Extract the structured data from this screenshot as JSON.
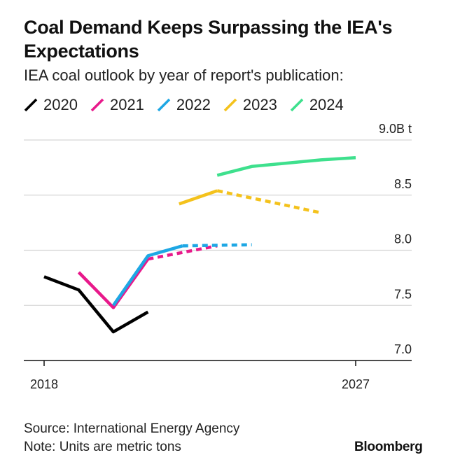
{
  "title": "Coal Demand Keeps Surpassing the IEA's Expectations",
  "subtitle": "IEA coal outlook by year of report's publication:",
  "source": "Source: International Energy Agency",
  "note": "Note: Units are metric tons",
  "brand": "Bloomberg",
  "chart_data": {
    "type": "line",
    "title": "Coal Demand Keeps Surpassing the IEA's Expectations",
    "subtitle": "IEA coal outlook by year of report's publication:",
    "xlabel": "",
    "ylabel": "",
    "xlim": [
      2018,
      2028.2
    ],
    "ylim": [
      7.0,
      9.0
    ],
    "x_ticks": [
      2018,
      2027
    ],
    "x_tick_labels": [
      "2018",
      "2027"
    ],
    "y_ticks": [
      9.0,
      8.5,
      8.0,
      7.5,
      7.0
    ],
    "y_tick_labels": [
      "9.0B t",
      "8.5",
      "8.0",
      "7.5",
      "7.0"
    ],
    "grid": true,
    "legend_position": "top-left",
    "series": [
      {
        "name": "2020",
        "color": "#000000",
        "points": [
          [
            2018,
            7.76
          ],
          [
            2019,
            7.64
          ],
          [
            2020,
            7.26
          ],
          [
            2021,
            7.44
          ]
        ],
        "projection": []
      },
      {
        "name": "2021",
        "color": "#e8198b",
        "points": [
          [
            2019,
            7.8
          ],
          [
            2020,
            7.48
          ],
          [
            2021,
            7.92
          ]
        ],
        "projection": [
          [
            2021,
            7.92
          ],
          [
            2022,
            7.98
          ],
          [
            2023,
            8.04
          ]
        ]
      },
      {
        "name": "2022",
        "color": "#1ea7e4",
        "points": [
          [
            2020,
            7.5
          ],
          [
            2021,
            7.95
          ],
          [
            2022,
            8.04
          ]
        ],
        "projection": [
          [
            2022,
            8.04
          ],
          [
            2024,
            8.05
          ]
        ]
      },
      {
        "name": "2023",
        "color": "#f4c21c",
        "points": [
          [
            2021.9,
            8.42
          ],
          [
            2023,
            8.54
          ]
        ],
        "projection": [
          [
            2023,
            8.54
          ],
          [
            2026,
            8.34
          ]
        ]
      },
      {
        "name": "2024",
        "color": "#3ee08d",
        "points": [
          [
            2023,
            8.68
          ],
          [
            2024,
            8.76
          ],
          [
            2026,
            8.82
          ],
          [
            2027,
            8.84
          ]
        ],
        "projection": []
      }
    ]
  }
}
